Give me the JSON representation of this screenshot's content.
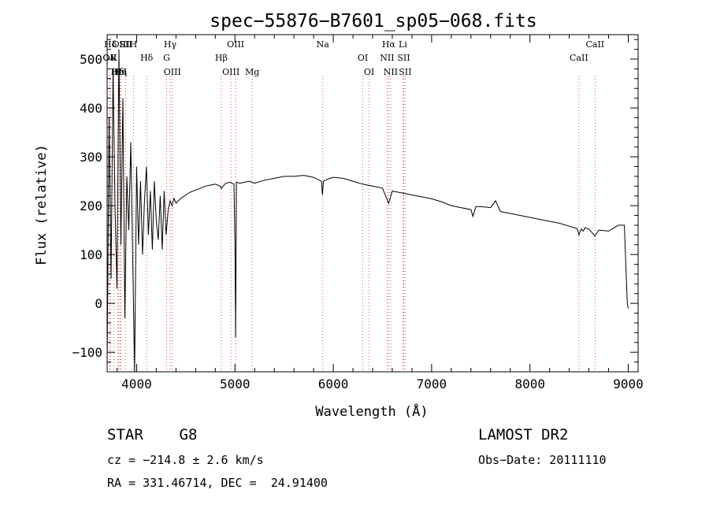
{
  "chart_data": {
    "type": "line",
    "title": "spec−55876−B7601_sp05−068.fits",
    "xlabel": "Wavelength (Å)",
    "ylabel": "Flux (relative)",
    "xlim": [
      3700,
      9100
    ],
    "ylim": [
      -140,
      550
    ],
    "xticks": [
      4000,
      5000,
      6000,
      7000,
      8000,
      9000
    ],
    "yticks": [
      -100,
      0,
      100,
      200,
      300,
      400,
      500
    ],
    "grid": false,
    "series": [
      {
        "x": [
          3700,
          3720,
          3740,
          3760,
          3780,
          3800,
          3820,
          3840,
          3860,
          3880,
          3900,
          3920,
          3940,
          3960,
          3980,
          4000,
          4020,
          4040,
          4060,
          4080,
          4100,
          4120,
          4140,
          4160,
          4180,
          4200,
          4220,
          4240,
          4260,
          4280,
          4300,
          4320,
          4340,
          4360,
          4380,
          4400,
          4450,
          4500,
          4550,
          4600,
          4650,
          4700,
          4750,
          4800,
          4850,
          4861,
          4900,
          4950,
          4990,
          5000,
          5007,
          5015,
          5050,
          5100,
          5150,
          5200,
          5300,
          5400,
          5500,
          5600,
          5700,
          5800,
          5880,
          5890,
          5900,
          5950,
          6000,
          6100,
          6200,
          6300,
          6400,
          6500,
          6563,
          6600,
          6700,
          6800,
          6900,
          7000,
          7100,
          7200,
          7300,
          7400,
          7420,
          7450,
          7500,
          7600,
          7650,
          7700,
          7800,
          7900,
          8000,
          8100,
          8200,
          8300,
          8400,
          8480,
          8498,
          8520,
          8542,
          8560,
          8600,
          8662,
          8700,
          8800,
          8900,
          8960,
          8990,
          9000
        ],
        "values": [
          -120,
          380,
          50,
          480,
          200,
          30,
          520,
          120,
          420,
          -30,
          260,
          150,
          330,
          90,
          -140,
          280,
          120,
          250,
          100,
          210,
          280,
          140,
          230,
          110,
          250,
          170,
          130,
          220,
          110,
          230,
          140,
          190,
          210,
          200,
          215,
          205,
          215,
          222,
          228,
          232,
          236,
          240,
          242,
          244,
          240,
          235,
          245,
          248,
          244,
          120,
          -70,
          248,
          246,
          248,
          250,
          246,
          252,
          256,
          260,
          260,
          262,
          258,
          250,
          222,
          250,
          255,
          258,
          256,
          250,
          244,
          240,
          236,
          205,
          230,
          226,
          222,
          218,
          214,
          208,
          200,
          196,
          192,
          178,
          198,
          198,
          196,
          210,
          188,
          184,
          180,
          176,
          172,
          168,
          164,
          158,
          153,
          140,
          152,
          148,
          155,
          152,
          138,
          150,
          148,
          160,
          160,
          0,
          -10
        ]
      }
    ],
    "lines": [
      {
        "label": "Hδ",
        "x": 3733
      },
      {
        "label": "K",
        "x": 3767
      },
      {
        "label": "Hδ",
        "x": 3810
      },
      {
        "label": "OIII",
        "x": 3841
      },
      {
        "label": "OII",
        "x": 3727
      },
      {
        "label": "HeI",
        "x": 3819
      },
      {
        "label": "SII",
        "x": 3888
      },
      {
        "label": "OII",
        "x": 3727
      },
      {
        "label": "Hη",
        "x": 3835
      },
      {
        "label": "H",
        "x": 3968
      },
      {
        "label": "Hδ",
        "x": 4102
      },
      {
        "label": "OIII",
        "x": 4363
      },
      {
        "label": "Hγ",
        "x": 4341
      },
      {
        "label": "G",
        "x": 4305
      },
      {
        "label": "OIII",
        "x": 4959
      },
      {
        "label": "OIII",
        "x": 5007
      },
      {
        "label": "Hβ",
        "x": 4861
      },
      {
        "label": "Mg",
        "x": 5175
      },
      {
        "label": "Na",
        "x": 5893
      },
      {
        "label": "OI",
        "x": 6300
      },
      {
        "label": "OI",
        "x": 6364
      },
      {
        "label": "Hα",
        "x": 6563
      },
      {
        "label": "SII",
        "x": 6716
      },
      {
        "label": "NII",
        "x": 6584
      },
      {
        "label": "Li",
        "x": 6708
      },
      {
        "label": "NII",
        "x": 6548
      },
      {
        "label": "SII",
        "x": 6731
      },
      {
        "label": "CaII",
        "x": 8662
      },
      {
        "label": "CaII",
        "x": 8498
      }
    ]
  },
  "info": {
    "object": "STAR    G8",
    "cz": "cz = −214.8 ± 2.6 km/s",
    "radec": "RA = 331.46714, DEC =  24.91400",
    "survey": "LAMOST DR2",
    "obsdate": "Obs−Date: 20111110"
  }
}
